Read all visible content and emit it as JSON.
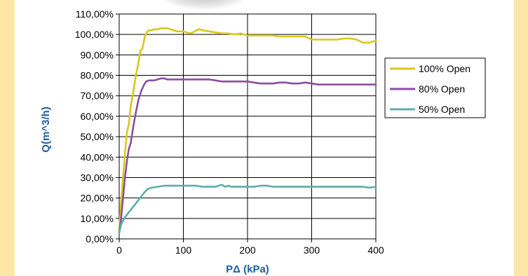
{
  "colors": {
    "side_panel": "#fde6a6",
    "axis_title": "#1f5f9f",
    "grid": "#000000",
    "shadow": "#a9a9a9"
  },
  "decoration": {
    "shadow_icon": "gray-shadow-blob"
  },
  "chart_data": {
    "type": "line",
    "xlabel": "PΔ (kPa)",
    "ylabel": "Q(m^3/h)",
    "xlim": [
      0,
      400
    ],
    "ylim": [
      0,
      110
    ],
    "x_ticks": [
      "0",
      "100",
      "200",
      "300",
      "400"
    ],
    "y_ticks": [
      "0,00%",
      "10,00%",
      "20,00%",
      "30,00%",
      "40,00%",
      "50,00%",
      "60,00%",
      "70,00%",
      "80,00%",
      "90,00%",
      "100,00%",
      "110,00%"
    ],
    "grid": true,
    "legend_position": "right",
    "series": [
      {
        "name": "100% Open",
        "color": "#d7c918",
        "points": [
          [
            0,
            4
          ],
          [
            3,
            18
          ],
          [
            6,
            30
          ],
          [
            9,
            42
          ],
          [
            12,
            52
          ],
          [
            15,
            56
          ],
          [
            18,
            65
          ],
          [
            22,
            72
          ],
          [
            26,
            80
          ],
          [
            30,
            86
          ],
          [
            33,
            92
          ],
          [
            36,
            93
          ],
          [
            38,
            96
          ],
          [
            40,
            99
          ],
          [
            43,
            101
          ],
          [
            46,
            102
          ],
          [
            50,
            102
          ],
          [
            55,
            102.5
          ],
          [
            60,
            102.5
          ],
          [
            65,
            103
          ],
          [
            70,
            103
          ],
          [
            75,
            103
          ],
          [
            80,
            102.5
          ],
          [
            85,
            102
          ],
          [
            90,
            101.5
          ],
          [
            95,
            101.5
          ],
          [
            100,
            101.5
          ],
          [
            105,
            101
          ],
          [
            110,
            100.5
          ],
          [
            115,
            101
          ],
          [
            120,
            102
          ],
          [
            125,
            102.5
          ],
          [
            130,
            102
          ],
          [
            140,
            101.5
          ],
          [
            150,
            101
          ],
          [
            160,
            100.5
          ],
          [
            170,
            100.5
          ],
          [
            180,
            100
          ],
          [
            190,
            100.5
          ],
          [
            195,
            100
          ],
          [
            200,
            99.5
          ],
          [
            210,
            99.5
          ],
          [
            220,
            99.5
          ],
          [
            230,
            99.5
          ],
          [
            240,
            99.5
          ],
          [
            250,
            99
          ],
          [
            260,
            99
          ],
          [
            270,
            99
          ],
          [
            280,
            99
          ],
          [
            290,
            99
          ],
          [
            300,
            97.5
          ],
          [
            310,
            97.5
          ],
          [
            320,
            97.5
          ],
          [
            330,
            97.5
          ],
          [
            340,
            97.5
          ],
          [
            350,
            98
          ],
          [
            360,
            98
          ],
          [
            370,
            97.5
          ],
          [
            380,
            96
          ],
          [
            390,
            96
          ],
          [
            400,
            97
          ]
        ]
      },
      {
        "name": "80% Open",
        "color": "#8b4ea3",
        "points": [
          [
            0,
            3
          ],
          [
            3,
            10
          ],
          [
            6,
            20
          ],
          [
            9,
            30
          ],
          [
            12,
            38
          ],
          [
            15,
            44
          ],
          [
            18,
            47
          ],
          [
            22,
            55
          ],
          [
            26,
            62
          ],
          [
            30,
            68
          ],
          [
            34,
            72
          ],
          [
            38,
            75
          ],
          [
            42,
            77
          ],
          [
            46,
            77.5
          ],
          [
            50,
            77.5
          ],
          [
            55,
            77.5
          ],
          [
            60,
            78
          ],
          [
            65,
            78.5
          ],
          [
            70,
            78.5
          ],
          [
            75,
            78
          ],
          [
            80,
            78
          ],
          [
            85,
            78
          ],
          [
            90,
            78
          ],
          [
            100,
            78
          ],
          [
            110,
            78
          ],
          [
            120,
            78
          ],
          [
            130,
            78
          ],
          [
            140,
            78
          ],
          [
            150,
            77.5
          ],
          [
            160,
            77
          ],
          [
            170,
            77
          ],
          [
            180,
            77
          ],
          [
            190,
            77
          ],
          [
            200,
            77
          ],
          [
            210,
            76.5
          ],
          [
            220,
            76
          ],
          [
            230,
            76
          ],
          [
            240,
            76
          ],
          [
            250,
            76.5
          ],
          [
            260,
            76.5
          ],
          [
            270,
            76
          ],
          [
            280,
            76
          ],
          [
            290,
            76.5
          ],
          [
            300,
            76
          ],
          [
            310,
            75.5
          ],
          [
            320,
            75.5
          ],
          [
            330,
            75.5
          ],
          [
            340,
            75.5
          ],
          [
            350,
            75.5
          ],
          [
            360,
            75.5
          ],
          [
            370,
            75.5
          ],
          [
            380,
            75.5
          ],
          [
            390,
            75.5
          ],
          [
            400,
            75.5
          ]
        ]
      },
      {
        "name": "50% Open",
        "color": "#5aaeaa",
        "points": [
          [
            0,
            3
          ],
          [
            3,
            7
          ],
          [
            6,
            9
          ],
          [
            10,
            11
          ],
          [
            15,
            13
          ],
          [
            20,
            15
          ],
          [
            25,
            17
          ],
          [
            30,
            19
          ],
          [
            35,
            21
          ],
          [
            40,
            23
          ],
          [
            45,
            24.5
          ],
          [
            50,
            25
          ],
          [
            60,
            25.5
          ],
          [
            70,
            26
          ],
          [
            80,
            26
          ],
          [
            90,
            26
          ],
          [
            100,
            26
          ],
          [
            110,
            26
          ],
          [
            120,
            26
          ],
          [
            130,
            25.5
          ],
          [
            140,
            25.5
          ],
          [
            150,
            25.5
          ],
          [
            155,
            26
          ],
          [
            160,
            26.5
          ],
          [
            165,
            25.5
          ],
          [
            170,
            26
          ],
          [
            175,
            25.5
          ],
          [
            180,
            25.5
          ],
          [
            190,
            25.5
          ],
          [
            200,
            25.5
          ],
          [
            210,
            25.5
          ],
          [
            220,
            26
          ],
          [
            230,
            26
          ],
          [
            240,
            25.5
          ],
          [
            250,
            25.5
          ],
          [
            260,
            25.5
          ],
          [
            270,
            25.5
          ],
          [
            280,
            25.5
          ],
          [
            290,
            25.5
          ],
          [
            300,
            25.5
          ],
          [
            310,
            25.5
          ],
          [
            320,
            25.5
          ],
          [
            330,
            25.5
          ],
          [
            340,
            25.5
          ],
          [
            350,
            25.5
          ],
          [
            360,
            25.5
          ],
          [
            370,
            25.5
          ],
          [
            380,
            25.5
          ],
          [
            390,
            25
          ],
          [
            400,
            25.5
          ]
        ]
      }
    ]
  }
}
